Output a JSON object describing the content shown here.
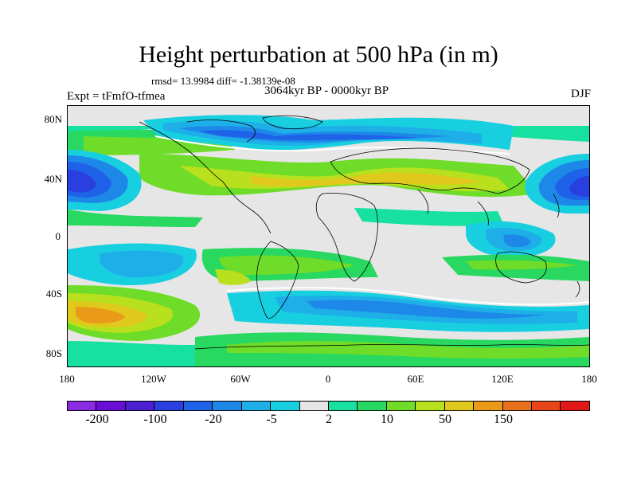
{
  "title": "Height perturbation at 500 hPa (in m)",
  "stats": "rmsd= 13.9984 diff= -1.38139e-08",
  "subtitle": "3064kyr BP - 0000kyr BP",
  "experiment": "Expt = tFmfO-tfmea",
  "season": "DJF",
  "lat_ticks": [
    "80N",
    "40N",
    "0",
    "40S",
    "80S"
  ],
  "lon_ticks": [
    "180",
    "120W",
    "60W",
    "0",
    "60E",
    "120E",
    "180"
  ],
  "colorbar": {
    "colors": [
      "#8a2be2",
      "#6a0dd6",
      "#4b1fd1",
      "#2a3fe0",
      "#1e62e8",
      "#1e88e8",
      "#1eaee8",
      "#18cfe0",
      "#e6e6e6",
      "#18e0a0",
      "#28d860",
      "#6edc28",
      "#b8e01c",
      "#e0c81c",
      "#e89a18",
      "#e8701c",
      "#e84618",
      "#e01818"
    ],
    "labels": [
      "-200",
      "-100",
      "-20",
      "-5",
      "2",
      "10",
      "50",
      "150"
    ]
  },
  "legend_colors": {
    "grey": "#e6e6e6",
    "cyan": "#18cfe0",
    "light_blue": "#1eaee8",
    "blue": "#1e62e8",
    "deep_blue": "#2a3fe0",
    "teal": "#18e0a0",
    "green": "#28d860",
    "lime": "#6edc28",
    "yellow_green": "#b8e01c",
    "yellow": "#e0c81c",
    "orange": "#e89a18"
  }
}
